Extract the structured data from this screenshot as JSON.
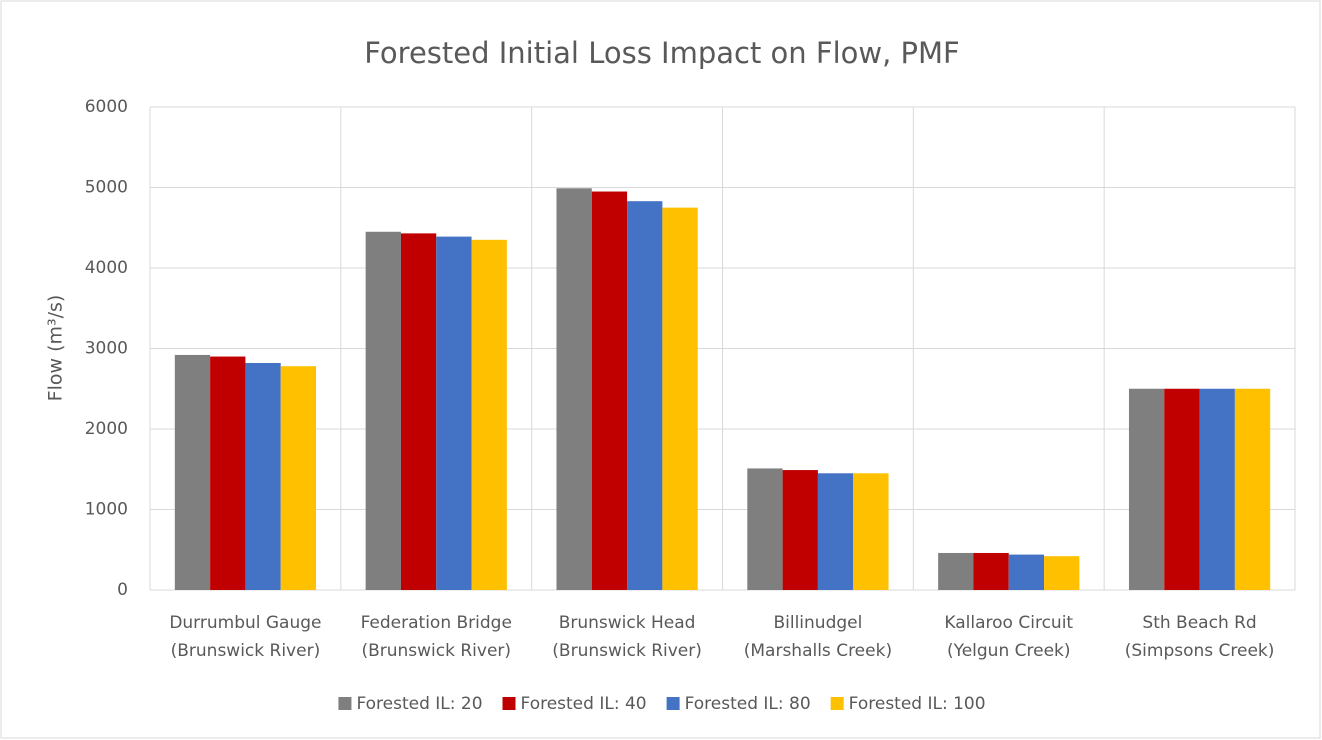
{
  "chart_data": {
    "type": "bar",
    "title": "Forested Initial Loss Impact on Flow, PMF",
    "y_label": "Flow (m³/s)",
    "categories": [
      [
        "Durrumbul Gauge",
        "(Brunswick River)"
      ],
      [
        "Federation Bridge",
        "(Brunswick River)"
      ],
      [
        "Brunswick Head",
        "(Brunswick River)"
      ],
      [
        "Billinudgel",
        "(Marshalls Creek)"
      ],
      [
        "Kallaroo Circuit",
        "(Yelgun Creek)"
      ],
      [
        "Sth Beach Rd",
        "(Simpsons Creek)"
      ]
    ],
    "series": [
      {
        "name": "Forested IL: 20",
        "color": "#7f7f7f",
        "values": [
          2920,
          4450,
          4990,
          1510,
          460,
          2500
        ]
      },
      {
        "name": "Forested IL: 40",
        "color": "#c00000",
        "values": [
          2900,
          4430,
          4950,
          1490,
          460,
          2500
        ]
      },
      {
        "name": "Forested IL: 80",
        "color": "#4472c4",
        "values": [
          2820,
          4390,
          4830,
          1450,
          440,
          2500
        ]
      },
      {
        "name": "Forested IL: 100",
        "color": "#ffc000",
        "values": [
          2780,
          4350,
          4750,
          1450,
          420,
          2500
        ]
      }
    ],
    "ylim": [
      0,
      6000
    ],
    "yticks": [
      0,
      1000,
      2000,
      3000,
      4000,
      5000,
      6000
    ],
    "grid": true,
    "legend": "bottom"
  }
}
